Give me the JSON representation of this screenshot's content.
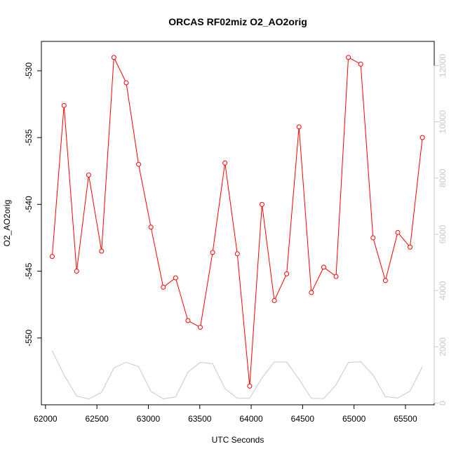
{
  "chart_data": {
    "type": "line",
    "title": "ORCAS RF02miz O2_AO2orig",
    "xlabel": "UTC Seconds",
    "ylabel": "O2_AO2orig",
    "xlim": [
      61960,
      65780
    ],
    "ylim": [
      -555,
      -527.8
    ],
    "y2lim": [
      -60,
      12860
    ],
    "x_ticks": [
      62000,
      62500,
      63000,
      63500,
      64000,
      64500,
      65000,
      65500
    ],
    "x_tick_labels": [
      "62000",
      "62500",
      "63000",
      "63500",
      "64000",
      "64500",
      "65000",
      "65500"
    ],
    "y_ticks": [
      -530,
      -535,
      -540,
      -545,
      -550
    ],
    "y_tick_labels": [
      "-530",
      "-535",
      "-540",
      "-545",
      "-550"
    ],
    "y2_ticks": [
      0,
      2000,
      4000,
      6000,
      8000,
      10000,
      12000
    ],
    "y2_tick_labels": [
      "0",
      "2000",
      "4000",
      "6000",
      "8000",
      "10000",
      "12000"
    ],
    "colors": {
      "primary": "#ff0000",
      "secondary": "#c8c8c8",
      "axis": "#000000"
    },
    "grid": false,
    "series": [
      {
        "axis": "left",
        "style": "line+points",
        "x": [
          62065,
          62180,
          62303,
          62420,
          62545,
          62665,
          62785,
          62905,
          63025,
          63145,
          63265,
          63385,
          63505,
          63625,
          63745,
          63865,
          63985,
          64105,
          64225,
          64345,
          64465,
          64585,
          64705,
          64825,
          64945,
          65065,
          65185,
          65305,
          65425,
          65545,
          65665
        ],
        "y": [
          -543.9,
          -532.6,
          -545.0,
          -537.8,
          -543.5,
          -529.0,
          -530.9,
          -537.0,
          -541.7,
          -546.2,
          -545.5,
          -548.7,
          -549.2,
          -543.6,
          -536.9,
          -543.7,
          -553.6,
          -540.0,
          -547.2,
          -545.2,
          -534.2,
          -546.6,
          -544.7,
          -545.4,
          -529.0,
          -529.5,
          -542.5,
          -545.7,
          -542.1,
          -543.2,
          -535.0
        ]
      },
      {
        "axis": "right",
        "style": "line",
        "x": [
          62065,
          62180,
          62303,
          62420,
          62545,
          62665,
          62785,
          62905,
          63025,
          63145,
          63265,
          63385,
          63505,
          63625,
          63745,
          63865,
          63985,
          64105,
          64225,
          64345,
          64465,
          64585,
          64705,
          64825,
          64945,
          65065,
          65185,
          65305,
          65425,
          65545,
          65665
        ],
        "y": [
          1860,
          1000,
          250,
          150,
          380,
          1250,
          1450,
          1300,
          420,
          150,
          220,
          1100,
          1450,
          1400,
          520,
          170,
          170,
          900,
          1460,
          1460,
          850,
          170,
          160,
          650,
          1450,
          1470,
          1000,
          230,
          180,
          430,
          1300
        ]
      }
    ]
  }
}
